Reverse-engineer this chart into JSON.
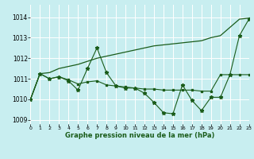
{
  "xlabel": "Graphe pression niveau de la mer (hPa)",
  "xlim": [
    0,
    23
  ],
  "ylim": [
    1008.8,
    1014.6
  ],
  "yticks": [
    1009,
    1010,
    1011,
    1012,
    1013,
    1014
  ],
  "xticks": [
    0,
    1,
    2,
    3,
    4,
    5,
    6,
    7,
    8,
    9,
    10,
    11,
    12,
    13,
    14,
    15,
    16,
    17,
    18,
    19,
    20,
    21,
    22,
    23
  ],
  "bg_color": "#c8eef0",
  "grid_color": "#ffffff",
  "line_color": "#1a5c1a",
  "s_zigzag": [
    1010.0,
    1011.25,
    1011.0,
    1011.1,
    1010.9,
    1010.45,
    1011.5,
    1012.5,
    1011.3,
    1010.65,
    1010.55,
    1010.55,
    1010.3,
    1009.85,
    1009.35,
    1009.3,
    1010.7,
    1009.95,
    1009.45,
    1010.1,
    1010.1,
    1011.2,
    1013.1,
    1013.9
  ],
  "s_diagonal": [
    1010.0,
    1011.25,
    1011.3,
    1011.5,
    1011.6,
    1011.7,
    1011.85,
    1012.0,
    1012.1,
    1012.2,
    1012.3,
    1012.4,
    1012.5,
    1012.6,
    1012.65,
    1012.7,
    1012.75,
    1012.8,
    1012.85,
    1013.0,
    1013.1,
    1013.5,
    1013.9,
    1013.95
  ],
  "s_flat": [
    1010.0,
    1011.25,
    1011.0,
    1011.1,
    1010.95,
    1010.75,
    1010.85,
    1010.9,
    1010.7,
    1010.65,
    1010.6,
    1010.55,
    1010.5,
    1010.5,
    1010.45,
    1010.45,
    1010.45,
    1010.45,
    1010.4,
    1010.4,
    1011.2,
    1011.2,
    1011.2,
    1011.2
  ]
}
